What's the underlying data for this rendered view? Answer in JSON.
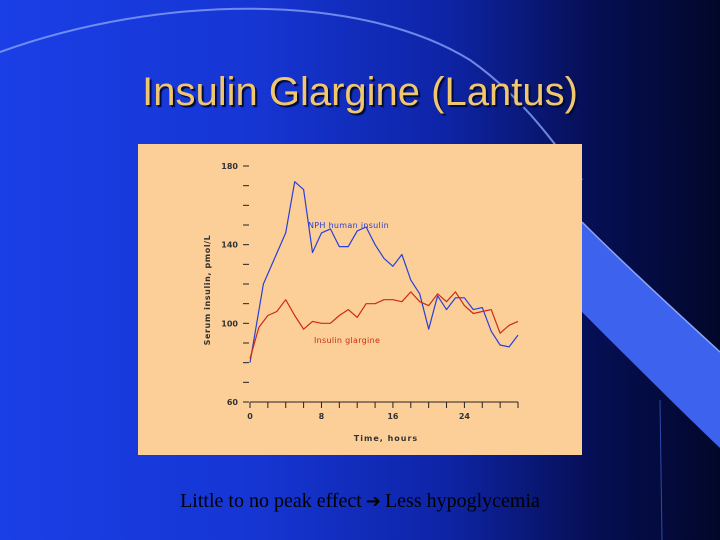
{
  "slide": {
    "title": "Insulin Glargine (Lantus)",
    "caption_left": "Little to no peak effect",
    "caption_arrow_icon": "right-arrow-icon",
    "caption_right": "Less hypoglycemia",
    "colors": {
      "background_left": "#1a3fe6",
      "background_right": "#02072a",
      "title": "#f0c76e",
      "chart_panel": "#fccf99"
    }
  },
  "chart_data": {
    "type": "line",
    "title": "",
    "xlabel": "Time, hours",
    "ylabel": "Serum insulin, pmol/L",
    "xlim": [
      0,
      30
    ],
    "ylim": [
      60,
      180
    ],
    "xticks": [
      0,
      8,
      16,
      24
    ],
    "yticks": [
      60,
      100,
      140,
      180
    ],
    "grid": false,
    "series": [
      {
        "name": "NPH human insulin",
        "color": "#2a3fd8",
        "x": [
          0,
          1.5,
          4,
          5,
          6,
          7,
          8,
          9,
          10,
          11,
          12,
          13,
          14,
          15,
          16,
          17,
          18,
          19,
          20,
          21,
          22,
          23,
          24,
          25,
          26,
          27,
          28,
          29,
          30
        ],
        "y": [
          80,
          120,
          146,
          172,
          168,
          136,
          146,
          148,
          139,
          139,
          147,
          149,
          140,
          133,
          129,
          135,
          122,
          115,
          97,
          114,
          107,
          113,
          113,
          107,
          108,
          96,
          89,
          88,
          94
        ]
      },
      {
        "name": "Insulin glargine",
        "color": "#cc2a10",
        "x": [
          0,
          1,
          2,
          3,
          4,
          5,
          6,
          7,
          8,
          9,
          10,
          11,
          12,
          13,
          14,
          15,
          16,
          17,
          18,
          19,
          20,
          21,
          22,
          23,
          24,
          25,
          26,
          27,
          28,
          29,
          30
        ],
        "y": [
          82,
          98,
          104,
          106,
          112,
          104,
          97,
          101,
          100,
          100,
          104,
          107,
          103,
          110,
          110,
          112,
          112,
          111,
          116,
          111,
          109,
          115,
          111,
          116,
          109,
          105,
          106,
          107,
          95,
          99,
          101
        ]
      }
    ]
  }
}
